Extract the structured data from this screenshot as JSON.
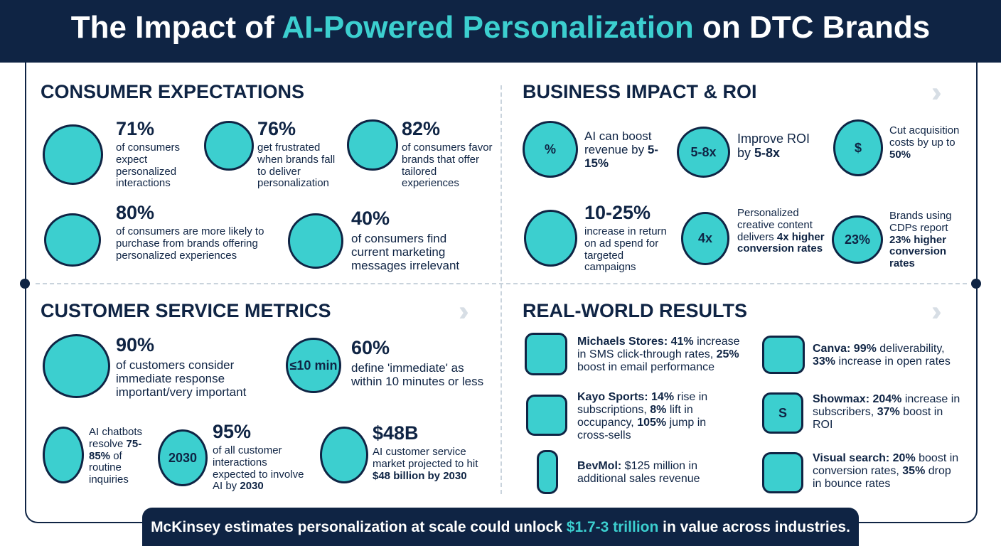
{
  "header": {
    "title": [
      {
        "t": "The Impact of "
      },
      {
        "t": "AI-Powered Personalization",
        "hl": true
      },
      {
        "t": " on DTC Brands"
      }
    ]
  },
  "sections": [
    {
      "title": "CONSUMER EXPECTATIONS",
      "items": [
        {
          "stat": "71%",
          "text": [
            {
              "t": "of consumers expect personalized interactions"
            }
          ]
        },
        {
          "stat": "76%",
          "text": [
            {
              "t": "get frustrated when brands fall to deliver personalization"
            }
          ]
        },
        {
          "stat": "82%",
          "text": [
            {
              "t": "of consumers favor brands that offer tailored experiences"
            }
          ]
        },
        {
          "stat": "80%",
          "text": [
            {
              "t": "of consumers are more likely to purchase from brands offering personalized experiences"
            }
          ]
        },
        {
          "stat": "40%",
          "text": [
            {
              "t": "of consumers find current marketing messages irrelevant"
            }
          ]
        }
      ]
    },
    {
      "title": "BUSINESS IMPACT & ROI",
      "items": [
        {
          "icon_label": "%",
          "text": [
            {
              "t": "AI can boost revenue by "
            },
            {
              "t": "5-15%",
              "b": true
            }
          ]
        },
        {
          "icon_label": "5-8x",
          "text": [
            {
              "t": "Improve ROI by "
            },
            {
              "t": "5-8x",
              "b": true
            }
          ]
        },
        {
          "icon_label": "$",
          "text": [
            {
              "t": "Cut acquisition costs by up to "
            },
            {
              "t": "50%",
              "b": true
            }
          ]
        },
        {
          "stat": "10-25%",
          "text": [
            {
              "t": "increase in return on ad spend for targeted campaigns"
            }
          ]
        },
        {
          "icon_label": "4x",
          "text": [
            {
              "t": "Personalized creative content delivers "
            },
            {
              "t": "4x higher conversion rates",
              "b": true
            }
          ]
        },
        {
          "icon_label": "23%",
          "text": [
            {
              "t": "Brands using CDPs report "
            },
            {
              "t": "23% higher conversion rates",
              "b": true
            }
          ]
        }
      ]
    },
    {
      "title": "CUSTOMER SERVICE METRICS",
      "items": [
        {
          "stat": "90%",
          "text": [
            {
              "t": "of customers consider immediate response important/very important"
            }
          ]
        },
        {
          "icon_label": "≤10 min",
          "stat": "60%",
          "text": [
            {
              "t": "define 'immediate' as within 10 minutes or less"
            }
          ]
        },
        {
          "text": [
            {
              "t": "AI chatbots resolve "
            },
            {
              "t": "75-85%",
              "b": true
            },
            {
              "t": " of routine inquiries"
            }
          ]
        },
        {
          "icon_label": "2030",
          "stat": "95%",
          "text": [
            {
              "t": "of all customer interactions expected to involve AI by "
            },
            {
              "t": "2030",
              "b": true
            }
          ]
        },
        {
          "stat": "$48B",
          "text": [
            {
              "t": "AI customer service market projected to hit "
            },
            {
              "t": "$48 billion by 2030",
              "b": true
            }
          ]
        }
      ]
    },
    {
      "title": "REAL-WORLD RESULTS",
      "items": [
        {
          "text": [
            {
              "t": "Michaels Stores: 41%",
              "b": true
            },
            {
              "t": " increase in SMS click-through rates, "
            },
            {
              "t": "25%",
              "b": true
            },
            {
              "t": " boost in email performance"
            }
          ]
        },
        {
          "text": [
            {
              "t": "Kayo Sports: 14%",
              "b": true
            },
            {
              "t": " rise in subscriptions, "
            },
            {
              "t": "8%",
              "b": true
            },
            {
              "t": " lift in occupancy, "
            },
            {
              "t": "105%",
              "b": true
            },
            {
              "t": " jump in cross-sells"
            }
          ]
        },
        {
          "text": [
            {
              "t": "BevMol:",
              "b": true
            },
            {
              "t": " $125 million in additional sales revenue"
            }
          ]
        },
        {
          "text": [
            {
              "t": "Canva: 99%",
              "b": true
            },
            {
              "t": " deliverability, "
            },
            {
              "t": "33%",
              "b": true
            },
            {
              "t": " increase in open rates"
            }
          ]
        },
        {
          "icon_label": "S",
          "text": [
            {
              "t": "Showmax: 204%",
              "b": true
            },
            {
              "t": " increase in subscribers, "
            },
            {
              "t": "37%",
              "b": true
            },
            {
              "t": " boost in ROI"
            }
          ]
        },
        {
          "text": [
            {
              "t": "Visual search: 20%",
              "b": true
            },
            {
              "t": " boost in conversion rates, "
            },
            {
              "t": "35%",
              "b": true
            },
            {
              "t": " drop in bounce rates"
            }
          ]
        }
      ]
    }
  ],
  "footer": {
    "text": [
      {
        "t": "McKinsey estimates personalization at scale could unlock "
      },
      {
        "t": "$1.7-3 trillion",
        "hl": true
      },
      {
        "t": " in value across industries."
      }
    ]
  }
}
